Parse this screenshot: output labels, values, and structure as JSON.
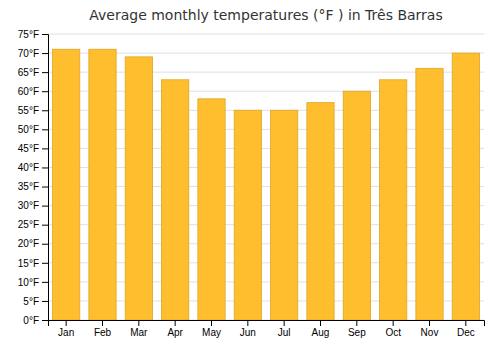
{
  "chart_data": {
    "type": "bar",
    "title": "Average monthly temperatures (°F ) in Três Barras",
    "categories": [
      "Jan",
      "Feb",
      "Mar",
      "Apr",
      "May",
      "Jun",
      "Jul",
      "Aug",
      "Sep",
      "Oct",
      "Nov",
      "Dec"
    ],
    "values": [
      71,
      71,
      69,
      63,
      58,
      55,
      55,
      57,
      60,
      63,
      66,
      70
    ],
    "color": "#FFBE2D",
    "ylim": [
      0,
      75
    ],
    "yticks": [
      {
        "value": 0,
        "label": "0°F"
      },
      {
        "value": 5,
        "label": "5°F"
      },
      {
        "value": 10,
        "label": "10°F"
      },
      {
        "value": 15,
        "label": "15°F"
      },
      {
        "value": 20,
        "label": "20°F"
      },
      {
        "value": 25,
        "label": "25°F"
      },
      {
        "value": 30,
        "label": "30°F"
      },
      {
        "value": 35,
        "label": "35°F"
      },
      {
        "value": 40,
        "label": "40°F"
      },
      {
        "value": 45,
        "label": "45°F"
      },
      {
        "value": 50,
        "label": "50°F"
      },
      {
        "value": 55,
        "label": "55°F"
      },
      {
        "value": 60,
        "label": "60°F"
      },
      {
        "value": 65,
        "label": "65°F"
      },
      {
        "value": 70,
        "label": "70°F"
      },
      {
        "value": 75,
        "label": "75°F"
      }
    ],
    "grid": true
  }
}
